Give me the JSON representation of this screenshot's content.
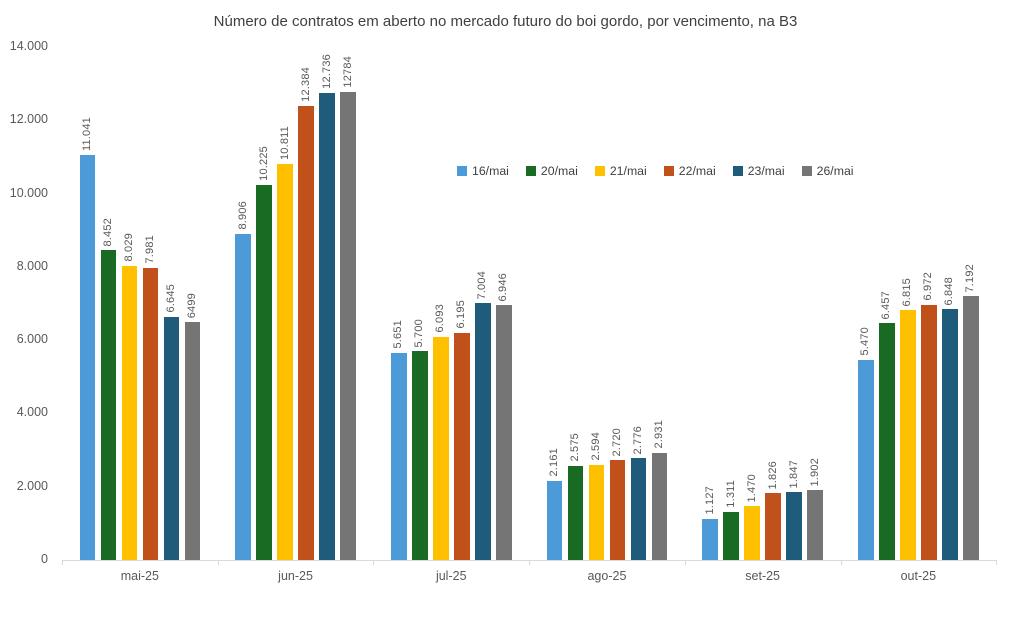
{
  "chart_data": {
    "type": "bar",
    "title": "Número de contratos em aberto no mercado futuro do boi gordo, por vencimento, na B3",
    "xlabel": "",
    "ylabel": "",
    "grid": false,
    "legend_position": "inside-top-right",
    "ylim": [
      0,
      14000
    ],
    "y_ticks": [
      {
        "value": 0,
        "label": "0"
      },
      {
        "value": 2000,
        "label": "2.000"
      },
      {
        "value": 4000,
        "label": "4.000"
      },
      {
        "value": 6000,
        "label": "6.000"
      },
      {
        "value": 8000,
        "label": "8.000"
      },
      {
        "value": 10000,
        "label": "10.000"
      },
      {
        "value": 12000,
        "label": "12.000"
      },
      {
        "value": 14000,
        "label": "14.000"
      }
    ],
    "categories": [
      "mai-25",
      "jun-25",
      "jul-25",
      "ago-25",
      "set-25",
      "out-25"
    ],
    "series": [
      {
        "name": "16/mai",
        "color": "#4d9ad8",
        "values": [
          11041,
          8906,
          5651,
          2161,
          1127,
          5470
        ],
        "labels": [
          "11.041",
          "8.906",
          "5.651",
          "2.161",
          "1.127",
          "5.470"
        ]
      },
      {
        "name": "20/mai",
        "color": "#196b24",
        "values": [
          8452,
          10225,
          5700,
          2575,
          1311,
          6457
        ],
        "labels": [
          "8.452",
          "10.225",
          "5.700",
          "2.575",
          "1.311",
          "6.457"
        ]
      },
      {
        "name": "21/mai",
        "color": "#ffc000",
        "values": [
          8029,
          10811,
          6093,
          2594,
          1470,
          6815
        ],
        "labels": [
          "8.029",
          "10.811",
          "6.093",
          "2.594",
          "1.470",
          "6.815"
        ]
      },
      {
        "name": "22/mai",
        "color": "#c0511a",
        "values": [
          7981,
          12384,
          6195,
          2720,
          1826,
          6972
        ],
        "labels": [
          "7.981",
          "12.384",
          "6.195",
          "2.720",
          "1.826",
          "6.972"
        ]
      },
      {
        "name": "23/mai",
        "color": "#1f5c7c",
        "values": [
          6645,
          12736,
          7004,
          2776,
          1847,
          6848
        ],
        "labels": [
          "6.645",
          "12.736",
          "7.004",
          "2.776",
          "1.847",
          "6.848"
        ]
      },
      {
        "name": "26/mai",
        "color": "#757575",
        "values": [
          6499,
          12784,
          6946,
          2931,
          1902,
          7192
        ],
        "labels": [
          "6499",
          "12784",
          "6.946",
          "2.931",
          "1.902",
          "7.192"
        ]
      }
    ]
  }
}
